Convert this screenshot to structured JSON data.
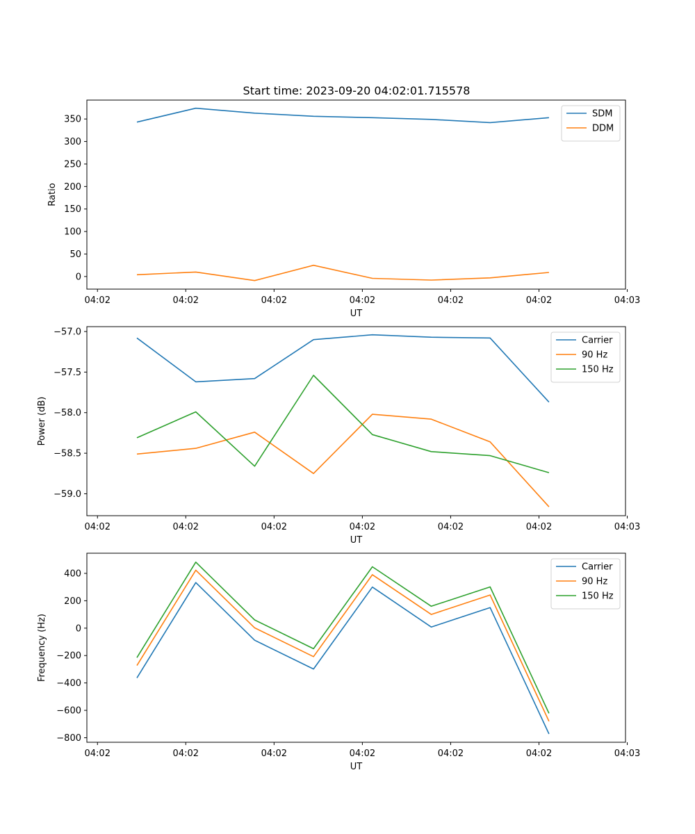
{
  "figure": {
    "title": "Start time: 2023-09-20 04:02:01.715578"
  },
  "chart_data": [
    {
      "type": "line",
      "title": "Start time: 2023-09-20 04:02:01.715578",
      "xlabel": "UT",
      "ylabel": "Ratio",
      "x_tick_labels": [
        "04:02",
        "04:02",
        "04:02",
        "04:02",
        "04:02",
        "04:02",
        "04:03"
      ],
      "x_points": [
        1,
        2,
        3,
        4,
        5,
        6,
        7,
        8
      ],
      "xlim": [
        0.15,
        9.3
      ],
      "x_ticks": [
        0.33,
        1.83,
        3.33,
        4.83,
        6.33,
        7.83,
        9.33
      ],
      "ylim": [
        -28,
        392
      ],
      "y_ticks": [
        0,
        50,
        100,
        150,
        200,
        250,
        300,
        350
      ],
      "y_tick_labels": [
        "0",
        "50",
        "100",
        "150",
        "200",
        "250",
        "300",
        "350"
      ],
      "legend_position": "upper right",
      "series": [
        {
          "name": "SDM",
          "color": "#1f77b4",
          "values": [
            343,
            374,
            363,
            356,
            353,
            349,
            342,
            353
          ]
        },
        {
          "name": "DDM",
          "color": "#ff7f0e",
          "values": [
            4,
            10,
            -9,
            25,
            -4,
            -8,
            -3,
            9
          ]
        }
      ]
    },
    {
      "type": "line",
      "title": "",
      "xlabel": "UT",
      "ylabel": "Power (dB)",
      "x_tick_labels": [
        "04:02",
        "04:02",
        "04:02",
        "04:02",
        "04:02",
        "04:02",
        "04:03"
      ],
      "x_points": [
        1,
        2,
        3,
        4,
        5,
        6,
        7,
        8
      ],
      "xlim": [
        0.15,
        9.3
      ],
      "x_ticks": [
        0.33,
        1.83,
        3.33,
        4.83,
        6.33,
        7.83,
        9.33
      ],
      "ylim": [
        -59.27,
        -56.94
      ],
      "y_ticks": [
        -59.0,
        -58.5,
        -58.0,
        -57.5,
        -57.0
      ],
      "y_tick_labels": [
        "−59.0",
        "−58.5",
        "−58.0",
        "−57.5",
        "−57.0"
      ],
      "legend_position": "upper right",
      "series": [
        {
          "name": "Carrier",
          "color": "#1f77b4",
          "values": [
            -57.08,
            -57.62,
            -57.58,
            -57.1,
            -57.04,
            -57.07,
            -57.08,
            -57.87
          ]
        },
        {
          "name": "90 Hz",
          "color": "#ff7f0e",
          "values": [
            -58.51,
            -58.44,
            -58.24,
            -58.75,
            -58.02,
            -58.08,
            -58.36,
            -59.16
          ]
        },
        {
          "name": "150 Hz",
          "color": "#2ca02c",
          "values": [
            -58.31,
            -57.99,
            -58.66,
            -57.54,
            -58.27,
            -58.48,
            -58.53,
            -58.74
          ]
        }
      ]
    },
    {
      "type": "line",
      "title": "",
      "xlabel": "UT",
      "ylabel": "Frequency (Hz)",
      "x_tick_labels": [
        "04:02",
        "04:02",
        "04:02",
        "04:02",
        "04:02",
        "04:02",
        "04:03"
      ],
      "x_points": [
        1,
        2,
        3,
        4,
        5,
        6,
        7,
        8
      ],
      "xlim": [
        0.15,
        9.3
      ],
      "x_ticks": [
        0.33,
        1.83,
        3.33,
        4.83,
        6.33,
        7.83,
        9.33
      ],
      "ylim": [
        -833,
        547
      ],
      "y_ticks": [
        -800,
        -600,
        -400,
        -200,
        0,
        200,
        400
      ],
      "y_tick_labels": [
        "−800",
        "−600",
        "−400",
        "−200",
        "0",
        "200",
        "400"
      ],
      "legend_position": "upper right",
      "series": [
        {
          "name": "Carrier",
          "color": "#1f77b4",
          "values": [
            -363,
            333,
            -88,
            -298,
            300,
            8,
            150,
            -772
          ]
        },
        {
          "name": "90 Hz",
          "color": "#ff7f0e",
          "values": [
            -273,
            423,
            2,
            -208,
            390,
            100,
            242,
            -680
          ]
        },
        {
          "name": "150 Hz",
          "color": "#2ca02c",
          "values": [
            -215,
            482,
            60,
            -150,
            448,
            160,
            301,
            -622
          ]
        }
      ]
    }
  ]
}
